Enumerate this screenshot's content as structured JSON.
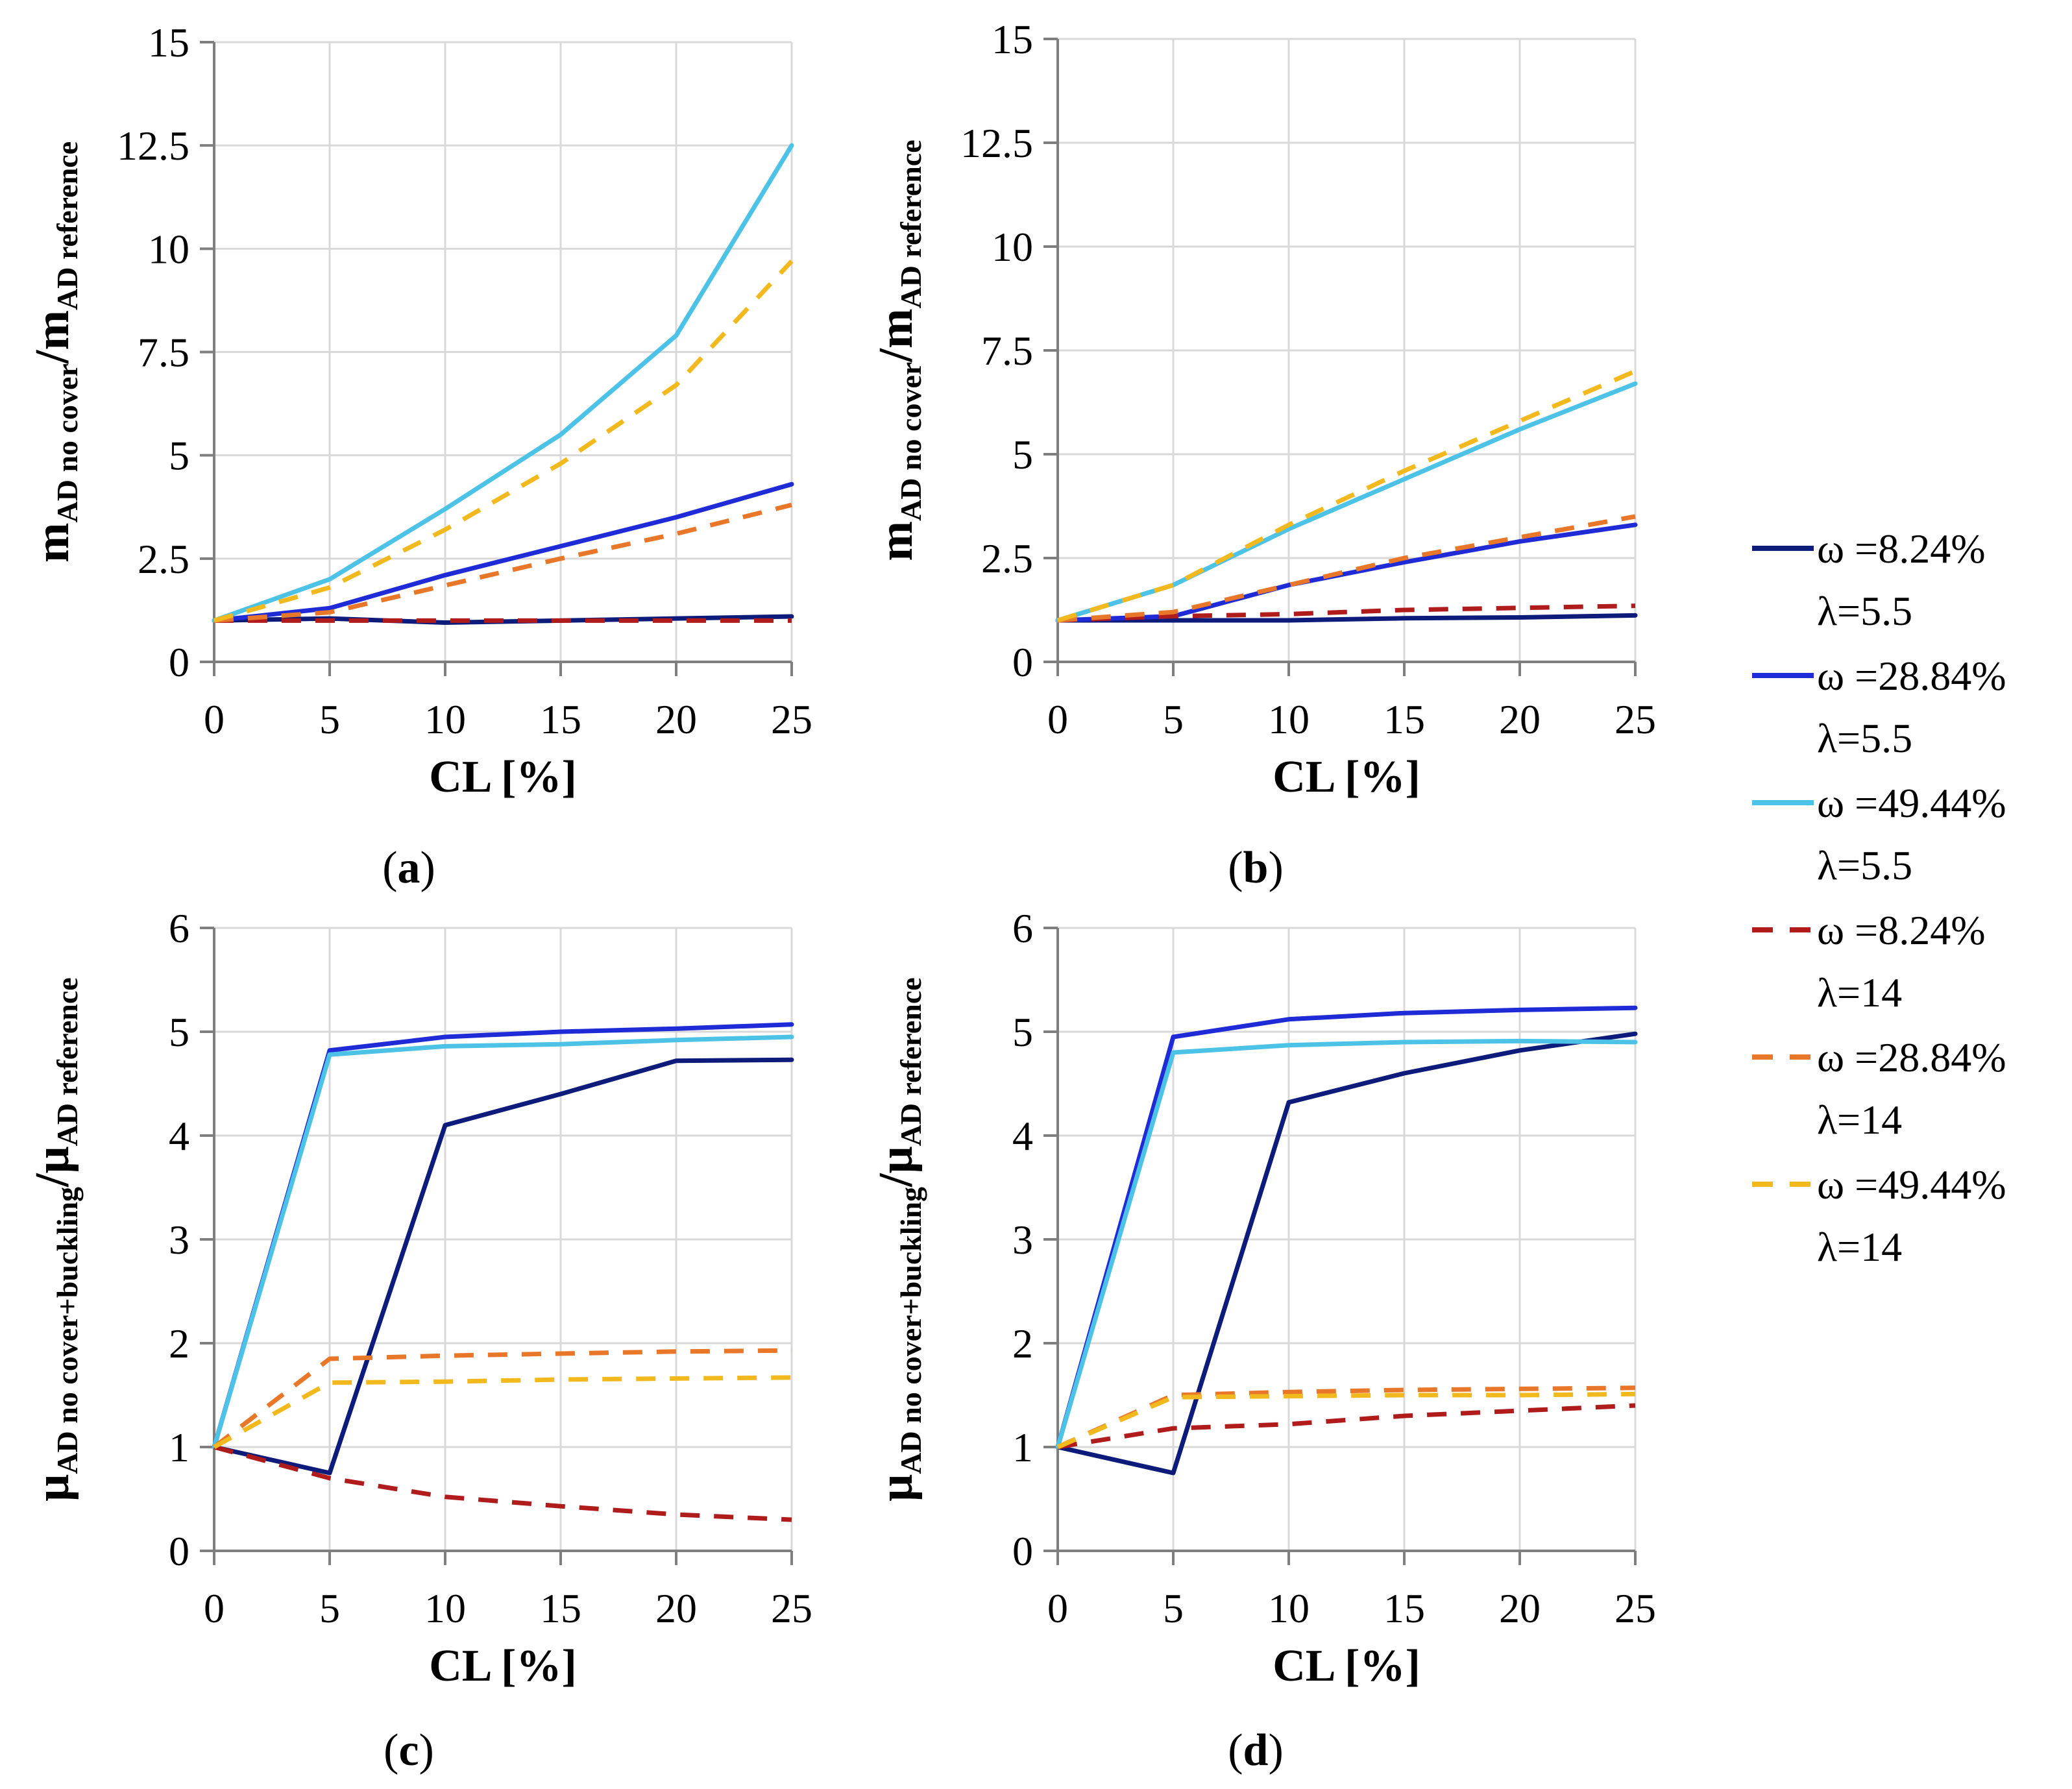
{
  "chart_data": [
    {
      "id": "a",
      "type": "line",
      "caption_letter": "a",
      "xlabel": "CL [%]",
      "ylabel": {
        "symbol": "m",
        "sub1": "AD no cover",
        "sep": "/",
        "symbol2": "m",
        "sub2": "AD reference"
      },
      "xlim": [
        0,
        25
      ],
      "ylim": [
        0,
        15
      ],
      "xticks": [
        "0",
        "5",
        "10",
        "15",
        "20",
        "25"
      ],
      "yticks": [
        "0",
        "2.5",
        "5",
        "7.5",
        "10",
        "12.5",
        "15"
      ],
      "grid": true,
      "x": [
        0,
        5,
        10,
        15,
        20,
        25
      ],
      "series": [
        {
          "name": "ω =8.24% λ=5.5",
          "values": [
            1.0,
            1.05,
            0.95,
            1.0,
            1.05,
            1.1
          ]
        },
        {
          "name": "ω =28.84% λ=5.5",
          "values": [
            1.0,
            1.3,
            2.1,
            2.8,
            3.5,
            4.3
          ]
        },
        {
          "name": "ω =49.44% λ=5.5",
          "values": [
            1.0,
            2.0,
            3.7,
            5.5,
            7.9,
            12.5
          ]
        },
        {
          "name": "ω =8.24% λ=14",
          "values": [
            1.0,
            1.0,
            1.0,
            1.0,
            1.0,
            1.0
          ]
        },
        {
          "name": "ω =28.84% λ=14",
          "values": [
            1.0,
            1.2,
            1.85,
            2.5,
            3.1,
            3.8
          ]
        },
        {
          "name": "ω =49.44% λ=14",
          "values": [
            1.0,
            1.8,
            3.2,
            4.8,
            6.7,
            9.7
          ]
        }
      ]
    },
    {
      "id": "b",
      "type": "line",
      "caption_letter": "b",
      "xlabel": "CL [%]",
      "ylabel": {
        "symbol": "m",
        "sub1": "AD no cover",
        "sep": "/",
        "symbol2": "m",
        "sub2": "AD reference"
      },
      "xlim": [
        0,
        25
      ],
      "ylim": [
        0,
        15
      ],
      "xticks": [
        "0",
        "5",
        "10",
        "15",
        "20",
        "25"
      ],
      "yticks": [
        "0",
        "2.5",
        "5",
        "7.5",
        "10",
        "12.5",
        "15"
      ],
      "grid": true,
      "x": [
        0,
        5,
        10,
        15,
        20,
        25
      ],
      "series": [
        {
          "name": "ω =8.24% λ=5.5",
          "values": [
            1.0,
            1.0,
            1.0,
            1.05,
            1.07,
            1.12
          ]
        },
        {
          "name": "ω =28.84% λ=5.5",
          "values": [
            1.0,
            1.1,
            1.85,
            2.4,
            2.9,
            3.3
          ]
        },
        {
          "name": "ω =49.44% λ=5.5",
          "values": [
            1.0,
            1.85,
            3.2,
            4.4,
            5.6,
            6.7
          ]
        },
        {
          "name": "ω =8.24% λ=14",
          "values": [
            1.0,
            1.1,
            1.15,
            1.25,
            1.3,
            1.35
          ]
        },
        {
          "name": "ω =28.84% λ=14",
          "values": [
            1.0,
            1.2,
            1.85,
            2.5,
            3.0,
            3.5
          ]
        },
        {
          "name": "ω =49.44% λ=14",
          "values": [
            1.0,
            1.85,
            3.3,
            4.6,
            5.8,
            7.0
          ]
        }
      ]
    },
    {
      "id": "c",
      "type": "line",
      "caption_letter": "c",
      "xlabel": "CL [%]",
      "ylabel": {
        "symbol": "μ",
        "sub1": "AD no cover+buckling",
        "sep": "/",
        "symbol2": "μ",
        "sub2": "AD reference"
      },
      "xlim": [
        0,
        25
      ],
      "ylim": [
        0,
        6
      ],
      "xticks": [
        "0",
        "5",
        "10",
        "15",
        "20",
        "25"
      ],
      "yticks": [
        "0",
        "1",
        "2",
        "3",
        "4",
        "5",
        "6"
      ],
      "grid": true,
      "x": [
        0,
        5,
        10,
        15,
        20,
        25
      ],
      "series": [
        {
          "name": "ω =8.24% λ=5.5",
          "values": [
            1.0,
            0.75,
            4.1,
            4.4,
            4.72,
            4.73
          ]
        },
        {
          "name": "ω =28.84% λ=5.5",
          "values": [
            1.0,
            4.82,
            4.95,
            5.0,
            5.03,
            5.07
          ]
        },
        {
          "name": "ω =49.44% λ=5.5",
          "values": [
            1.0,
            4.78,
            4.86,
            4.88,
            4.92,
            4.95
          ]
        },
        {
          "name": "ω =8.24% λ=14",
          "values": [
            1.0,
            0.7,
            0.52,
            0.43,
            0.35,
            0.3
          ]
        },
        {
          "name": "ω =28.84% λ=14",
          "values": [
            1.0,
            1.85,
            1.88,
            1.9,
            1.92,
            1.93
          ]
        },
        {
          "name": "ω =49.44% λ=14",
          "values": [
            1.0,
            1.62,
            1.63,
            1.65,
            1.66,
            1.67
          ]
        }
      ]
    },
    {
      "id": "d",
      "type": "line",
      "caption_letter": "d",
      "xlabel": "CL [%]",
      "ylabel": {
        "symbol": "μ",
        "sub1": "AD no cover+buckling",
        "sep": "/",
        "symbol2": "μ",
        "sub2": "AD reference"
      },
      "xlim": [
        0,
        25
      ],
      "ylim": [
        0,
        6
      ],
      "xticks": [
        "0",
        "5",
        "10",
        "15",
        "20",
        "25"
      ],
      "yticks": [
        "0",
        "1",
        "2",
        "3",
        "4",
        "5",
        "6"
      ],
      "grid": true,
      "x": [
        0,
        5,
        10,
        15,
        20,
        25
      ],
      "series": [
        {
          "name": "ω =8.24% λ=5.5",
          "values": [
            1.0,
            0.75,
            4.32,
            4.6,
            4.82,
            4.98
          ]
        },
        {
          "name": "ω =28.84% λ=5.5",
          "values": [
            1.0,
            4.95,
            5.12,
            5.18,
            5.21,
            5.23
          ]
        },
        {
          "name": "ω =49.44% λ=5.5",
          "values": [
            1.0,
            4.8,
            4.87,
            4.9,
            4.91,
            4.9
          ]
        },
        {
          "name": "ω =8.24% λ=14",
          "values": [
            1.0,
            1.18,
            1.22,
            1.3,
            1.35,
            1.4
          ]
        },
        {
          "name": "ω =28.84% λ=14",
          "values": [
            1.0,
            1.5,
            1.53,
            1.55,
            1.56,
            1.57
          ]
        },
        {
          "name": "ω =49.44% λ=14",
          "values": [
            1.0,
            1.48,
            1.49,
            1.5,
            1.5,
            1.51
          ]
        }
      ]
    }
  ],
  "legend": {
    "position": "right",
    "items": [
      {
        "line1": "ω =8.24%",
        "line2": "λ=5.5",
        "color": "#0d1b7a",
        "dashed": false
      },
      {
        "line1": "ω =28.84%",
        "line2": "λ=5.5",
        "color": "#1f2bd6",
        "dashed": false
      },
      {
        "line1": "ω =49.44%",
        "line2": "λ=5.5",
        "color": "#4cc3e6",
        "dashed": false
      },
      {
        "line1": "ω =8.24%",
        "line2": "λ=14",
        "color": "#b01c1c",
        "dashed": true
      },
      {
        "line1": "ω =28.84%",
        "line2": "λ=14",
        "color": "#e8772a",
        "dashed": true
      },
      {
        "line1": "ω =49.44%",
        "line2": "λ=14",
        "color": "#f2b91f",
        "dashed": true
      }
    ]
  }
}
